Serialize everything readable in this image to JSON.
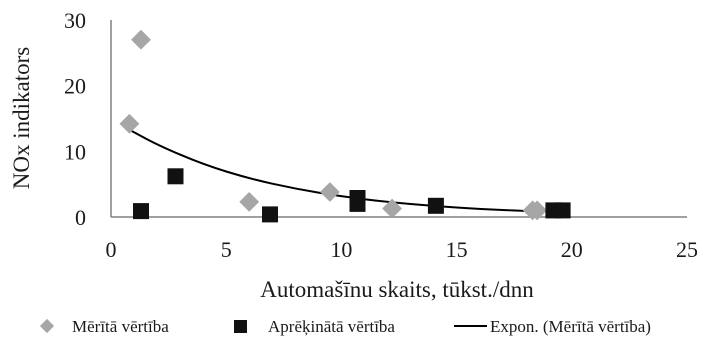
{
  "chart_data": {
    "type": "scatter",
    "title": "",
    "xlabel": "Automašīnu skaits, tūkst./dnn",
    "ylabel": "NOx indikators",
    "xlim": [
      0,
      25
    ],
    "ylim": [
      0,
      30
    ],
    "xticks": [
      "0",
      "5",
      "10",
      "15",
      "20",
      "25"
    ],
    "yticks": [
      "0",
      "10",
      "20",
      "30"
    ],
    "grid": false,
    "legend_position": "bottom",
    "series": [
      {
        "name": "Mērītā vērtība",
        "marker": "diamond",
        "color": "#a6a6a6",
        "points": [
          {
            "x": 0.8,
            "y": 14.2
          },
          {
            "x": 1.3,
            "y": 27.0
          },
          {
            "x": 6.0,
            "y": 2.3
          },
          {
            "x": 9.5,
            "y": 3.8
          },
          {
            "x": 12.2,
            "y": 1.3
          },
          {
            "x": 18.3,
            "y": 1.0
          },
          {
            "x": 18.5,
            "y": 1.0
          }
        ]
      },
      {
        "name": "Aprēķinātā vērtība",
        "marker": "square",
        "color": "#111111",
        "points": [
          {
            "x": 1.3,
            "y": 0.9
          },
          {
            "x": 2.8,
            "y": 6.2
          },
          {
            "x": 6.9,
            "y": 0.4
          },
          {
            "x": 10.7,
            "y": 2.9
          },
          {
            "x": 10.7,
            "y": 2.0
          },
          {
            "x": 14.1,
            "y": 1.7
          },
          {
            "x": 19.2,
            "y": 1.0
          },
          {
            "x": 19.6,
            "y": 1.0
          }
        ]
      }
    ],
    "trendline": {
      "name": "Expon. (Mērītā vērtība)",
      "type": "exponential",
      "color": "#000000",
      "x_range": [
        0.8,
        18.5
      ],
      "points": [
        {
          "x": 0.8,
          "y": 13.3
        },
        {
          "x": 2,
          "y": 11.0
        },
        {
          "x": 4,
          "y": 8.0
        },
        {
          "x": 6,
          "y": 5.85
        },
        {
          "x": 8,
          "y": 4.3
        },
        {
          "x": 10,
          "y": 3.13
        },
        {
          "x": 12,
          "y": 2.29
        },
        {
          "x": 14,
          "y": 1.67
        },
        {
          "x": 16,
          "y": 1.22
        },
        {
          "x": 18.5,
          "y": 0.83
        }
      ]
    }
  }
}
